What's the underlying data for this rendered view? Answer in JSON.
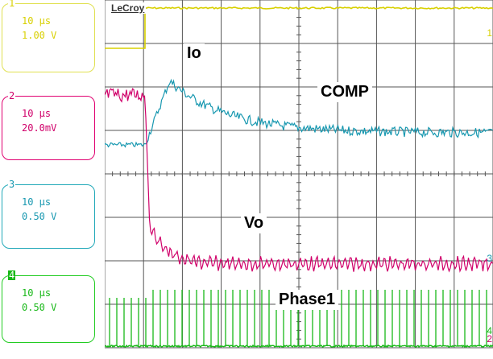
{
  "brand": "LeCroy",
  "channels": [
    {
      "num": "1",
      "timebase": "10 µs",
      "scale": "1.00 V",
      "color": "#d8d000"
    },
    {
      "num": "2",
      "timebase": "10 µs",
      "scale": "20.0mV",
      "color": "#d0006a"
    },
    {
      "num": "3",
      "timebase": "10 µs",
      "scale": "0.50 V",
      "color": "#1898b0"
    },
    {
      "num": "4",
      "timebase": "10 µs",
      "scale": "0.50 V",
      "color": "#18b818"
    }
  ],
  "trace_labels": {
    "io": "Io",
    "comp": "COMP",
    "vo": "Vo",
    "phase": "Phase1"
  },
  "right_markers": {
    "ch3": "3",
    "ch4": "4",
    "ch2": "2",
    "ch1": "1"
  },
  "colors": {
    "grid": "#555555",
    "ch1": "#d8d000",
    "ch2": "#d0006a",
    "ch3": "#1898b0",
    "ch4": "#18b818"
  }
}
